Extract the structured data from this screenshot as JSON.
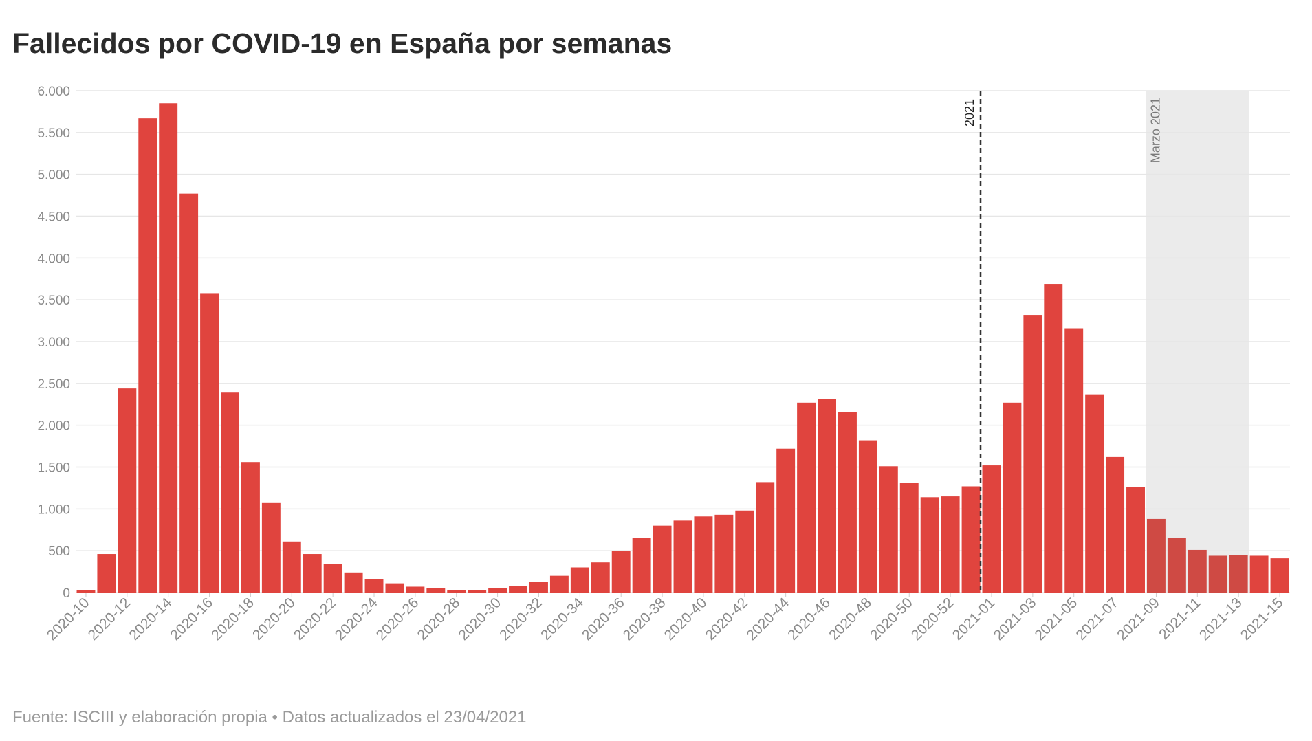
{
  "title": "Fallecidos por COVID-19 en España por semanas",
  "source": "Fuente: ISCIII y elaboración propia • Datos actualizados el 23/04/2021",
  "colors": {
    "bar": "#e0443e",
    "bar_shaded": "#cf4a44",
    "grid": "#e6e6e6",
    "shade": "#ebebeb",
    "vline": "#333333",
    "axis_text": "#8a8a8a"
  },
  "chart_data": {
    "type": "bar",
    "title": "Fallecidos por COVID-19 en España por semanas",
    "xlabel": "",
    "ylabel": "",
    "ylim": [
      0,
      6000
    ],
    "yticks": [
      0,
      500,
      1000,
      1500,
      2000,
      2500,
      3000,
      3500,
      4000,
      4500,
      5000,
      5500,
      6000
    ],
    "ytick_labels": [
      "0",
      "500",
      "1.000",
      "1.500",
      "2.000",
      "2.500",
      "3.000",
      "3.500",
      "4.000",
      "4.500",
      "5.000",
      "5.500",
      "6.000"
    ],
    "grid": true,
    "categories": [
      "2020-10",
      "2020-11",
      "2020-12",
      "2020-13",
      "2020-14",
      "2020-15",
      "2020-16",
      "2020-17",
      "2020-18",
      "2020-19",
      "2020-20",
      "2020-21",
      "2020-22",
      "2020-23",
      "2020-24",
      "2020-25",
      "2020-26",
      "2020-27",
      "2020-28",
      "2020-29",
      "2020-30",
      "2020-31",
      "2020-32",
      "2020-33",
      "2020-34",
      "2020-35",
      "2020-36",
      "2020-37",
      "2020-38",
      "2020-39",
      "2020-40",
      "2020-41",
      "2020-42",
      "2020-43",
      "2020-44",
      "2020-45",
      "2020-46",
      "2020-47",
      "2020-48",
      "2020-49",
      "2020-50",
      "2020-51",
      "2020-52",
      "2020-53",
      "2021-01",
      "2021-02",
      "2021-03",
      "2021-04",
      "2021-05",
      "2021-06",
      "2021-07",
      "2021-08",
      "2021-09",
      "2021-10",
      "2021-11",
      "2021-12",
      "2021-13",
      "2021-14",
      "2021-15"
    ],
    "visible_tick_labels": [
      "2020-10",
      "2020-12",
      "2020-14",
      "2020-16",
      "2020-18",
      "2020-20",
      "2020-22",
      "2020-24",
      "2020-26",
      "2020-28",
      "2020-30",
      "2020-32",
      "2020-34",
      "2020-36",
      "2020-38",
      "2020-40",
      "2020-42",
      "2020-44",
      "2020-46",
      "2020-48",
      "2020-50",
      "2020-52",
      "2021-01",
      "2021-03",
      "2021-05",
      "2021-07",
      "2021-09",
      "2021-11",
      "2021-13",
      "2021-15"
    ],
    "values": [
      30,
      460,
      2440,
      5670,
      5850,
      4770,
      3580,
      2390,
      1560,
      1070,
      610,
      460,
      340,
      240,
      160,
      110,
      70,
      50,
      30,
      30,
      50,
      80,
      130,
      200,
      300,
      360,
      500,
      650,
      800,
      860,
      910,
      930,
      980,
      1320,
      1720,
      2270,
      2310,
      2160,
      1820,
      1510,
      1310,
      1140,
      1150,
      1270,
      1520,
      2270,
      3320,
      3690,
      3160,
      2370,
      1620,
      1260,
      880,
      650,
      510,
      440,
      450,
      440,
      410
    ],
    "annotations": [
      {
        "type": "vline",
        "between": [
          "2020-53",
          "2021-01"
        ],
        "label": "2021"
      },
      {
        "type": "shaded_range",
        "from": "2021-09",
        "to": "2021-13",
        "label": "Marzo 2021"
      }
    ]
  }
}
